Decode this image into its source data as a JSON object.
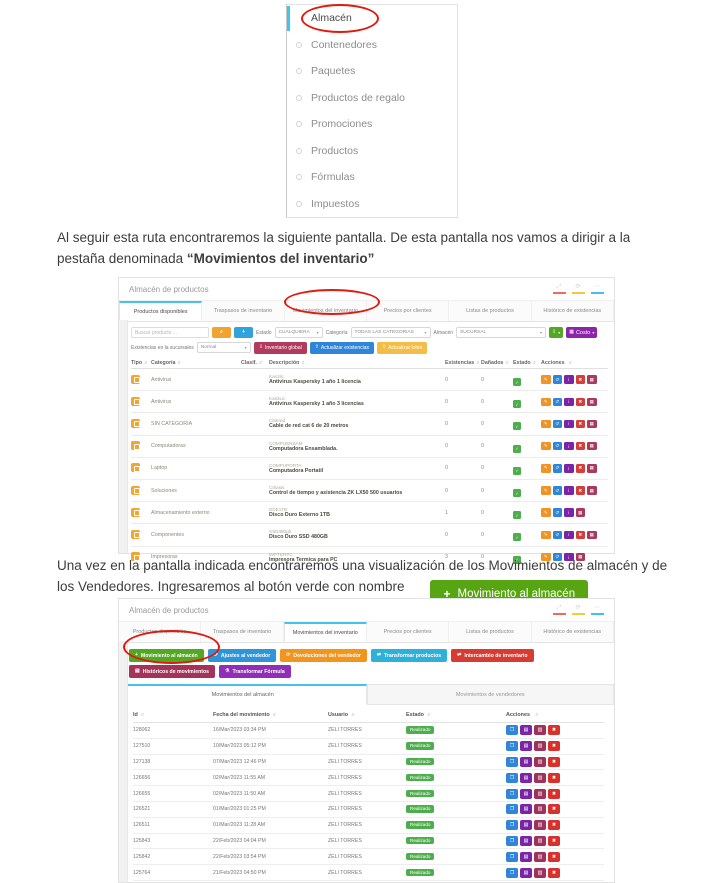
{
  "colors": {
    "annotation_red": "#e2190d",
    "accent_cyan": "#45c2ea",
    "callout_green": "#58a513",
    "status_green": "#4cae4c"
  },
  "sidebar_menu": {
    "items": [
      {
        "label": "Almacén",
        "active": true
      },
      {
        "label": "Contenedores"
      },
      {
        "label": "Paquetes"
      },
      {
        "label": "Productos de regalo"
      },
      {
        "label": "Promociones"
      },
      {
        "label": "Productos"
      },
      {
        "label": "Fórmulas"
      },
      {
        "label": "Impuestos"
      }
    ]
  },
  "paragraph1": {
    "text": "Al seguir esta ruta encontraremos la siguiente pantalla. De esta pantalla nos vamos a dirigir a la pestaña denominada ",
    "bold": "“Movimientos del inventario”"
  },
  "paragraph2": {
    "text": "Una vez en la pantalla indicada encontraremos una visualización de los Movimientos de almacén y de los Vendedores. Ingresaremos al botón verde con nombre",
    "button_icon": "+",
    "button_label": "Movimiento al almacén"
  },
  "screenshot1": {
    "window_title": "Almacén de productos",
    "tabs": [
      {
        "label": "Productos disponibles",
        "active": true
      },
      {
        "label": "Traspasos de inventario"
      },
      {
        "label": "Movimientos del inventario"
      },
      {
        "label": "Precios por clientes"
      },
      {
        "label": "Listas de productos"
      },
      {
        "label": "Histórico de existencias"
      }
    ],
    "filters": {
      "search_placeholder": "Buscar producto ...",
      "estado_label": "Estado",
      "estado_value": "CUALQUIERA",
      "categoria_label": "Categoría",
      "categoria_value": "TODAS LAS CATEGORIAS",
      "almacen_label": "Almacén",
      "almacen_value": "SUCURSAL",
      "costo_label": "Costo",
      "existencias_label": "Existencias en la sucursales",
      "existencias_value": "Normal",
      "inventario_global_label": "Inventario global",
      "actualizar_existencias_label": "Actualizar existencias",
      "actualizar_lotes_label": "Actualizar lotes"
    },
    "table": {
      "headers": {
        "tipo": "Tipo",
        "categoria": "Categoría",
        "clasif": "Clasif.",
        "descripcion": "Descripción",
        "existencias": "Existencias",
        "danados": "Dañados",
        "estado": "Estado",
        "acciones": "Acciones"
      },
      "rows": [
        {
          "categoria": "Antivirus",
          "codigo": "Kas1lic",
          "descripcion": "Antivirus Kaspersky 1 año 1 licencia",
          "existencias": "0",
          "danados": "0",
          "has_delete": true
        },
        {
          "categoria": "Antivirus",
          "codigo": "Kas3Lic",
          "descripcion": "Antivirus Kaspersky 1 año 3 licencias",
          "existencias": "0",
          "danados": "0",
          "has_delete": true
        },
        {
          "categoria": "SIN CATEGORIA",
          "codigo": "Cblered",
          "descripcion": "Cable de red cat 6 de 20 metros",
          "existencias": "0",
          "danados": "0",
          "has_delete": true
        },
        {
          "categoria": "Computadoras",
          "codigo": "COMPUENSAM",
          "descripcion": "Computadora Ensamblada.",
          "existencias": "0",
          "danados": "0",
          "has_delete": true
        },
        {
          "categoria": "Laptop",
          "codigo": "COMPUPORTA",
          "descripcion": "Computadora Portatil",
          "existencias": "0",
          "danados": "0",
          "has_delete": true
        },
        {
          "categoria": "Soluciones",
          "codigo": "Ctrlasis",
          "descripcion": "Control de tiempo y asistencia ZK LX50 500 usuarios",
          "existencias": "0",
          "danados": "0",
          "has_delete": true
        },
        {
          "categoria": "Almacenamiento externo",
          "codigo": "DDE1TB",
          "descripcion": "Disco Duro Externo 1TB",
          "existencias": "1",
          "danados": "0",
          "has_delete": false
        },
        {
          "categoria": "Componentes",
          "codigo": "SSD480gb",
          "descripcion": "Disco Duro SSD 480GB",
          "existencias": "0",
          "danados": "0",
          "has_delete": true
        },
        {
          "categoria": "Impresoras",
          "codigo": "IMPTERPC",
          "descripcion": "Impresora Termica para PC",
          "existencias": "3",
          "danados": "0",
          "has_delete": false
        }
      ]
    }
  },
  "screenshot2": {
    "window_title": "Almacén de productos",
    "tabs": [
      {
        "label": "Productos disponibles"
      },
      {
        "label": "Traspasos de inventario"
      },
      {
        "label": "Movimientos del inventario",
        "active": true
      },
      {
        "label": "Precios por clientes"
      },
      {
        "label": "Listas de productos"
      },
      {
        "label": "Histórico de existencias"
      }
    ],
    "action_buttons_row1": [
      {
        "label": "Movimiento al almacén",
        "icon": "+",
        "bg": "#52a822"
      },
      {
        "label": "Ajustes al vendedor",
        "icon": "⟳",
        "bg": "#3095d8"
      },
      {
        "label": "Devoluciones del vendedor",
        "icon": "⟳",
        "bg": "#f0961f"
      },
      {
        "label": "Transformar productos",
        "icon": "⇄",
        "bg": "#2fb0d8"
      },
      {
        "label": "Intercambio de inventario",
        "icon": "⇄",
        "bg": "#d73b31"
      }
    ],
    "action_buttons_row2": [
      {
        "label": "Históricos de movimientos",
        "icon": "▤",
        "bg": "#a33358"
      },
      {
        "label": "Transformar Fórmula",
        "icon": "⚗",
        "bg": "#8e2fb5"
      }
    ],
    "subtabs": [
      {
        "label": "Movimientos del almacén",
        "active": true
      },
      {
        "label": "Movimientos de vendedores"
      }
    ],
    "table": {
      "headers": {
        "id": "Id",
        "fecha": "Fecha del movimiento",
        "usuario": "Usuario",
        "estado": "Estado",
        "acciones": "Acciones"
      },
      "rows": [
        {
          "id": "128062",
          "fecha": "16/Mar/2023 03:34 PM",
          "usuario": "ZELI TORRES",
          "estado": "Realizado"
        },
        {
          "id": "127510",
          "fecha": "10/Mar/2023 05:12 PM",
          "usuario": "ZELI TORRES",
          "estado": "Realizado"
        },
        {
          "id": "127138",
          "fecha": "07/Mar/2023 12:46 PM",
          "usuario": "ZELI TORRES",
          "estado": "Realizado"
        },
        {
          "id": "126656",
          "fecha": "02/Mar/2023 11:55 AM",
          "usuario": "ZELI TORRES",
          "estado": "Realizado"
        },
        {
          "id": "126655",
          "fecha": "02/Mar/2023 11:50 AM",
          "usuario": "ZELI TORRES",
          "estado": "Realizado"
        },
        {
          "id": "126521",
          "fecha": "01/Mar/2023 01:25 PM",
          "usuario": "ZELI TORRES",
          "estado": "Realizado"
        },
        {
          "id": "126511",
          "fecha": "01/Mar/2023 11:28 AM",
          "usuario": "ZELI TORRES",
          "estado": "Realizado"
        },
        {
          "id": "125843",
          "fecha": "22/Feb/2023 04:04 PM",
          "usuario": "ZELI TORRES",
          "estado": "Realizado"
        },
        {
          "id": "125842",
          "fecha": "22/Feb/2023 03:54 PM",
          "usuario": "ZELI TORRES",
          "estado": "Realizado"
        },
        {
          "id": "125764",
          "fecha": "21/Feb/2023 04:50 PM",
          "usuario": "ZELI TORRES",
          "estado": "Realizado"
        },
        {
          "id": "125729",
          "fecha": "21/Feb/2023 11:21 AM",
          "usuario": "ZELI TORRES",
          "estado": "Realizado"
        }
      ]
    }
  }
}
